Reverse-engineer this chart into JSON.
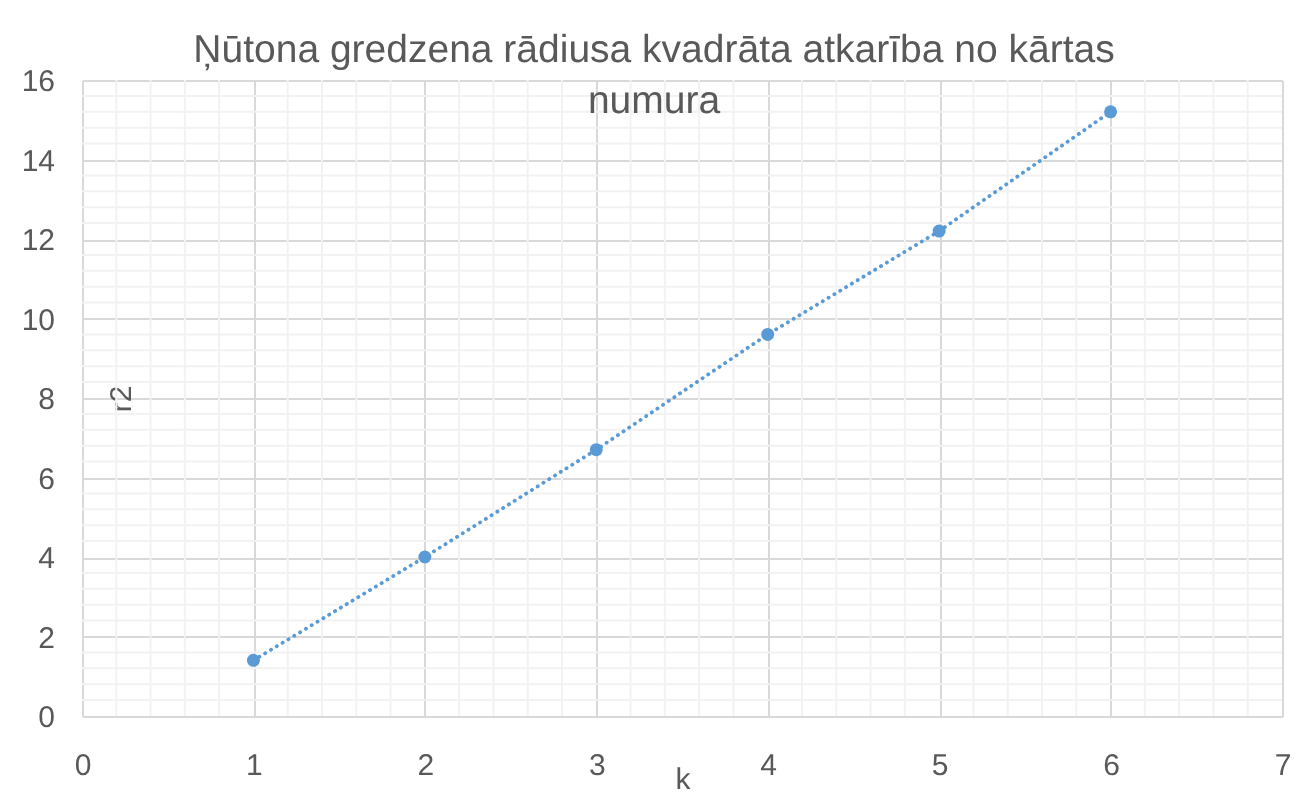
{
  "chart_data": {
    "type": "line",
    "title": "Ņūtona gredzena rādiusa kvadrāta atkarība no kārtas numura",
    "xlabel": "k",
    "ylabel": "r2",
    "x": [
      1,
      2,
      3,
      4,
      5,
      6
    ],
    "series": [
      {
        "color": "#5b9bd5",
        "values": [
          1.4,
          4.0,
          6.7,
          9.6,
          12.2,
          15.2
        ]
      }
    ],
    "xlim": [
      0,
      7
    ],
    "ylim": [
      0,
      16
    ],
    "xticks": [
      0,
      1,
      2,
      3,
      4,
      5,
      6,
      7
    ],
    "yticks": [
      0,
      2,
      4,
      6,
      8,
      10,
      12,
      14,
      16
    ],
    "grid": true,
    "marker": "circle",
    "line_style": "dotted"
  }
}
